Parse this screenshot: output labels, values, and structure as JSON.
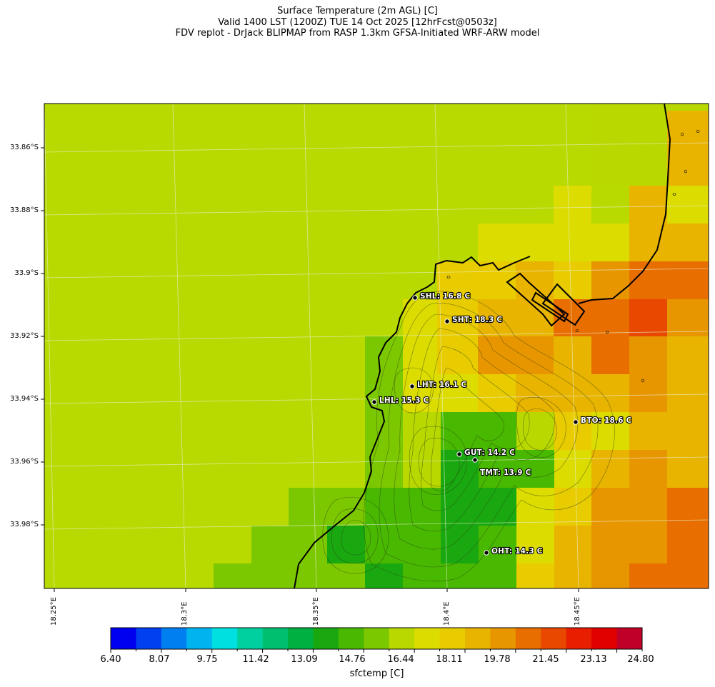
{
  "title": {
    "line1": "Surface Temperature (2m AGL) [C]",
    "line2": "Valid 1400 LST (1200Z) TUE 14 Oct 2025 [12hrFcst@0503z]",
    "line3": "FDV replot - DrJack BLIPMAP from RASP 1.3km GFSA-Initiated WRF-ARW model"
  },
  "map": {
    "lat_labels": [
      "33.86°S",
      "33.88°S",
      "33.9°S",
      "33.92°S",
      "33.94°S",
      "33.96°S",
      "33.98°S"
    ],
    "lon_labels": [
      "18.25°E",
      "18.3°E",
      "18.35°E",
      "18.4°E",
      "18.45°E"
    ],
    "stations": [
      {
        "id": "SHL",
        "label": "SHL: 16.8 C"
      },
      {
        "id": "SHT",
        "label": "SHT: 18.3 C"
      },
      {
        "id": "LHT",
        "label": "LHT: 16.1 C"
      },
      {
        "id": "LHL",
        "label": "LHL: 15.3 C"
      },
      {
        "id": "BTO",
        "label": "BTO: 18.6 C"
      },
      {
        "id": "GUT",
        "label": "GUT: 14.2 C"
      },
      {
        "id": "TMT",
        "label": "TMT: 13.9 C"
      },
      {
        "id": "OHT",
        "label": "OHT: 14.3 C"
      }
    ]
  },
  "colorbar": {
    "title": "sfctemp [C]",
    "tick_labels": [
      "6.40",
      "8.07",
      "9.75",
      "11.42",
      "13.09",
      "14.76",
      "16.44",
      "18.11",
      "19.78",
      "21.45",
      "23.13",
      "24.80"
    ],
    "colors": [
      "#0000f0",
      "#0040f0",
      "#0080f0",
      "#00b4f0",
      "#00e0e0",
      "#00d0a0",
      "#00c070",
      "#00b040",
      "#1aa810",
      "#48b800",
      "#7cc800",
      "#b8d800",
      "#dcdc00",
      "#e8cc00",
      "#e8b400",
      "#e89600",
      "#e86e00",
      "#e84800",
      "#e81e00",
      "#e00000",
      "#c00028"
    ]
  }
}
